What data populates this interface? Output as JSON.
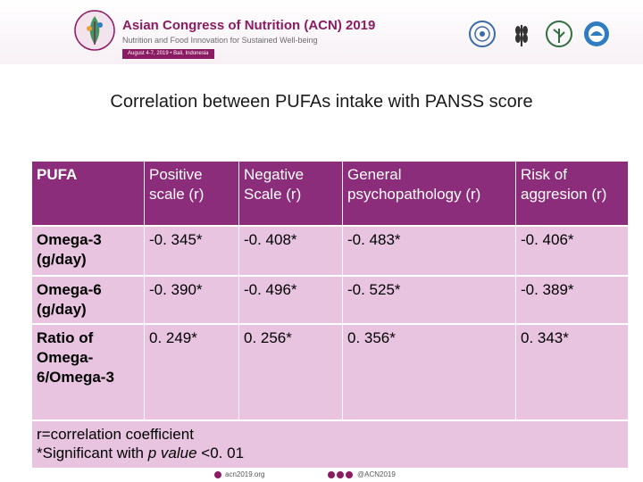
{
  "banner": {
    "title": "Asian Congress of Nutrition (ACN) 2019",
    "subtitle": "Nutrition and Food Innovation for Sustained Well-being",
    "date": "August 4-7, 2019  •  Bali, Indonesia"
  },
  "slide": {
    "title": "Correlation between PUFAs intake with PANSS score"
  },
  "table": {
    "headers": [
      "PUFA",
      "Positive scale (r)",
      "Negative Scale (r)",
      "General psychopathology (r)",
      "Risk of aggresion (r)"
    ],
    "rows": [
      {
        "label": "Omega-3 (g/day)",
        "values": [
          "-0. 345*",
          "-0. 408*",
          "-0. 483*",
          "-0. 406*"
        ]
      },
      {
        "label": "Omega-6 (g/day)",
        "values": [
          "-0. 390*",
          "-0. 496*",
          "-0. 525*",
          "-0. 389*"
        ]
      },
      {
        "label": "Ratio of Omega-6/Omega-3",
        "values": [
          "0. 249*",
          "0. 256*",
          "0. 356*",
          "0. 343*"
        ]
      }
    ],
    "footnote_line1": "r=correlation coefficient",
    "footnote_prefix": "*Significant with ",
    "footnote_italic": "p value",
    "footnote_suffix": " <0. 01"
  },
  "footer": {
    "website": "acn2019.org",
    "handle": "@ACN2019"
  },
  "colors": {
    "header_bg": "#8b2d7a",
    "cell_bg": "#e8c4e0",
    "brand": "#8b1b62"
  }
}
